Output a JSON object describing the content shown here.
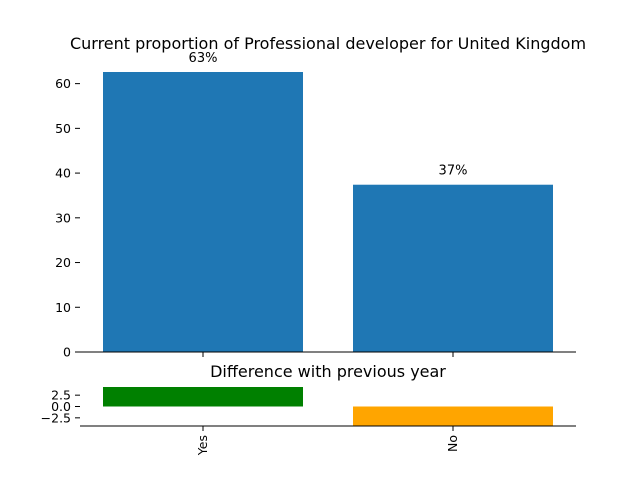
{
  "chart_data": [
    {
      "type": "bar",
      "title": "Current proportion of Professional developer for United Kingdom",
      "categories": [
        "Yes",
        "No"
      ],
      "values": [
        62.6,
        37.4
      ],
      "data_labels": [
        "63%",
        "37%"
      ],
      "yticks": [
        "0",
        "10",
        "20",
        "30",
        "40",
        "50",
        "60"
      ],
      "ylim": [
        0,
        62.6
      ],
      "color": "#1f77b4",
      "grid": false
    },
    {
      "type": "bar",
      "title": "Difference with previous year",
      "categories": [
        "Yes",
        "No"
      ],
      "values": [
        4.3,
        -4.3
      ],
      "yticks": [
        "2.5",
        "0.0",
        "−2.5"
      ],
      "ylim": [
        -4.3,
        4.3
      ],
      "colors": {
        "positive": "#008000",
        "negative": "#ffa500"
      },
      "grid": false
    }
  ]
}
